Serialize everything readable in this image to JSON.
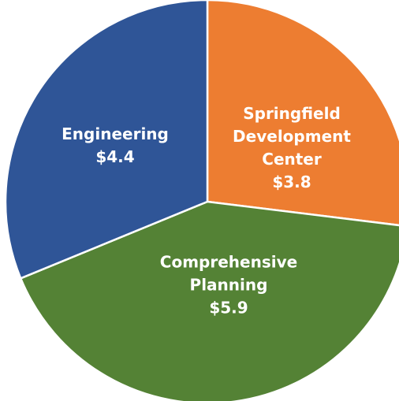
{
  "chart_data": {
    "type": "pie",
    "categories": [
      "Springfield Development Center",
      "Comprehensive Planning",
      "Engineering"
    ],
    "values": [
      3.8,
      5.9,
      4.4
    ],
    "value_labels": [
      "$3.8",
      "$5.9",
      "$4.4"
    ],
    "colors": [
      "#ED7D31",
      "#548235",
      "#2F5597"
    ]
  }
}
